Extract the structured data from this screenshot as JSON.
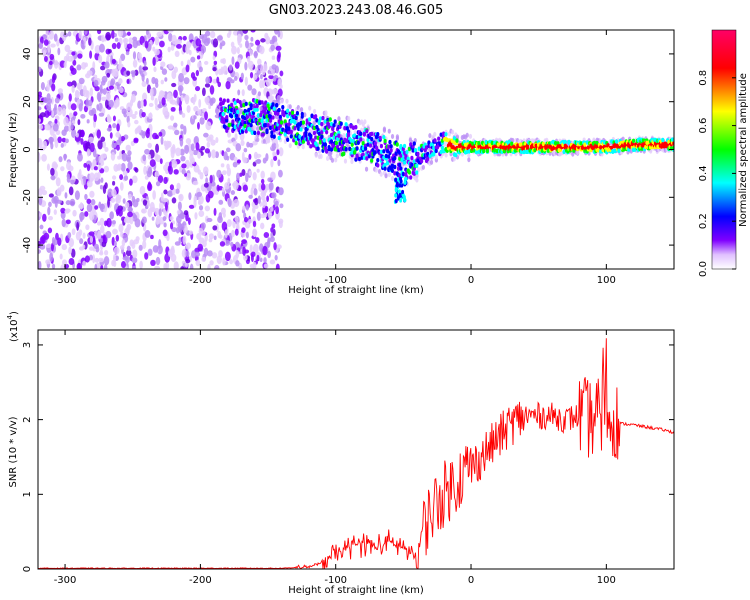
{
  "title": "GN03.2023.243.08.46.G05",
  "chart_data": [
    {
      "type": "heatmap",
      "xlabel": "Height of straight line (km)",
      "ylabel": "Frequency (Hz)",
      "xlim": [
        -320,
        150
      ],
      "ylim": [
        -50,
        50
      ],
      "xticks": [
        -300,
        -200,
        -100,
        0,
        100
      ],
      "yticks": [
        -40,
        -20,
        0,
        20,
        40
      ],
      "colorbar": {
        "label": "Normalized spectral amplitude",
        "range": [
          0,
          1
        ],
        "ticks": [
          "0.0",
          "0.2",
          "0.4",
          "0.6",
          "0.8"
        ],
        "colormap": [
          "#ffffff",
          "#8000ff",
          "#0000ff",
          "#00ffff",
          "#00ff00",
          "#ffff00",
          "#ff0000",
          "#ff0066"
        ]
      },
      "ridge": {
        "x": [
          -180,
          -160,
          -140,
          -120,
          -100,
          -80,
          -60,
          -50,
          -45,
          -40,
          -30,
          -20,
          -10,
          0,
          20,
          50,
          80,
          100,
          120,
          150
        ],
        "y": [
          14,
          14,
          11,
          8,
          5,
          2,
          -2,
          -5,
          -5,
          -3,
          0,
          3,
          1,
          1,
          1,
          1,
          1,
          1,
          2,
          2
        ]
      },
      "noise_region": {
        "x_range": [
          -320,
          -140
        ],
        "y_range": [
          -50,
          50
        ]
      }
    },
    {
      "type": "line",
      "xlabel": "Height of straight line (km)",
      "ylabel": "SNR (10 * v/v)",
      "exponent_label": "(x10",
      "exponent_power": "4",
      "exponent_close": ")",
      "xlim": [
        -320,
        150
      ],
      "ylim": [
        0,
        3.2
      ],
      "xticks": [
        -300,
        -200,
        -100,
        0,
        100
      ],
      "yticks": [
        0,
        1,
        2,
        3
      ],
      "series": [
        {
          "color": "#ff0000",
          "x": [
            -320,
            -200,
            -140,
            -120,
            -110,
            -100,
            -90,
            -80,
            -70,
            -60,
            -50,
            -45,
            -40,
            -35,
            -30,
            -25,
            -20,
            -15,
            -10,
            -5,
            0,
            10,
            20,
            30,
            40,
            50,
            60,
            70,
            80,
            90,
            95,
            100,
            105,
            110,
            120,
            130,
            140,
            150
          ],
          "y": [
            0.01,
            0.01,
            0.01,
            0.03,
            0.08,
            0.2,
            0.3,
            0.35,
            0.3,
            0.35,
            0.3,
            0.2,
            0.15,
            0.55,
            0.75,
            0.9,
            1.0,
            1.1,
            1.2,
            1.3,
            1.35,
            1.55,
            1.75,
            1.95,
            2.05,
            2.05,
            2.05,
            2.0,
            2.05,
            2.0,
            2.1,
            2.1,
            2.05,
            1.95,
            1.93,
            1.9,
            1.87,
            1.83
          ]
        }
      ]
    }
  ]
}
